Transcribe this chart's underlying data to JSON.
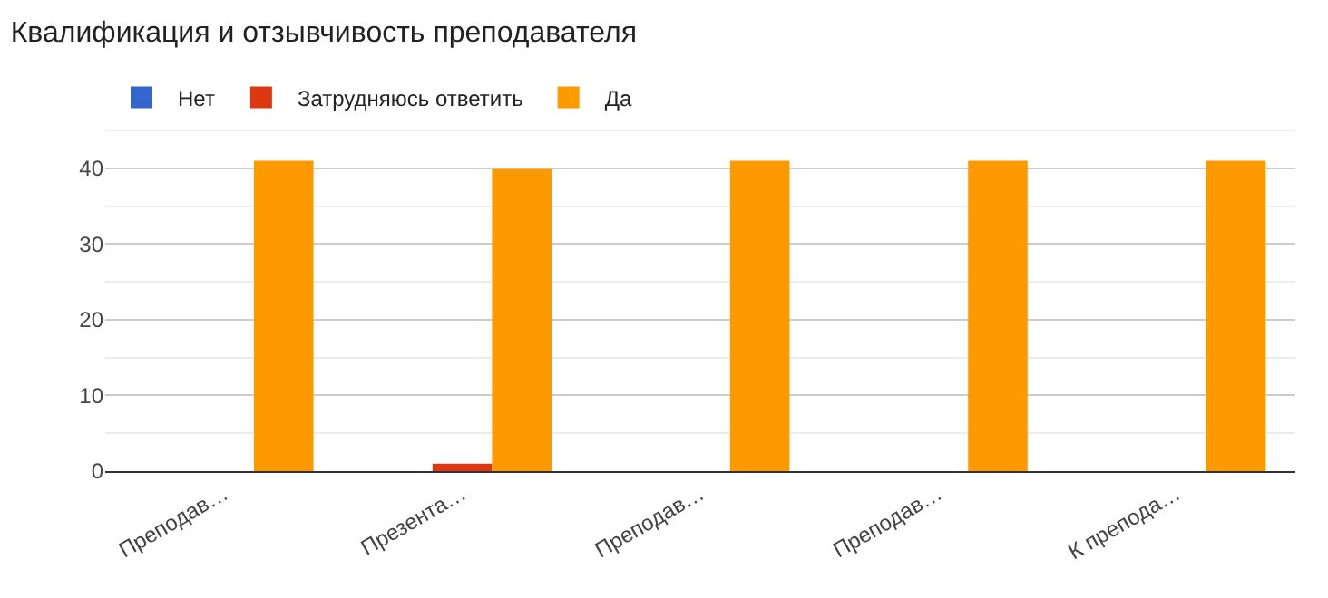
{
  "chart_data": {
    "type": "bar",
    "title": "Квалификация и отзывчивость преподавателя",
    "categories": [
      "Преподав…",
      "Презента…",
      "Преподав…",
      "Преподав…",
      "К препода…"
    ],
    "series": [
      {
        "name": "Нет",
        "color": "#3366cc",
        "values": [
          0,
          0,
          0,
          0,
          0
        ]
      },
      {
        "name": "Затрудняюсь ответить",
        "color": "#dc3912",
        "values": [
          0,
          1,
          0,
          0,
          0
        ]
      },
      {
        "name": "Да",
        "color": "#ff9900",
        "values": [
          41,
          40,
          41,
          41,
          41
        ]
      }
    ],
    "ylim": [
      0,
      45
    ],
    "yticks": [
      0,
      10,
      20,
      30,
      40,
      {
        "value": 45,
        "label": null
      }
    ],
    "grid": "y",
    "legend": "top left"
  }
}
